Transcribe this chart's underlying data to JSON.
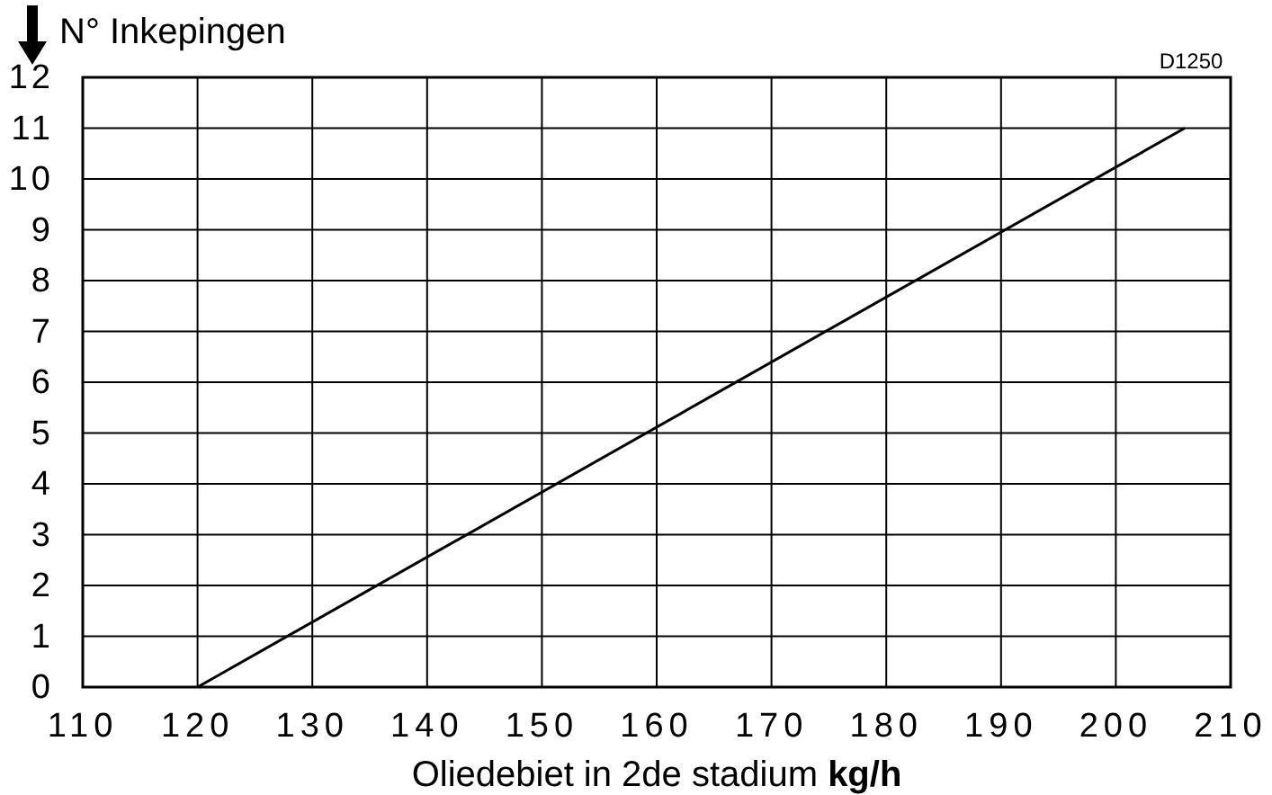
{
  "chart_data": {
    "type": "line",
    "ylabel": "N° Inkepingen",
    "xlabel": "Oliedebiet in 2de stadium kg/h",
    "annotations": [
      "D1250"
    ],
    "series": [
      {
        "color": "#000000",
        "x": [
          120,
          206
        ],
        "values": [
          0,
          11
        ]
      }
    ],
    "xlim": [
      110,
      210
    ],
    "xticks": [
      110,
      120,
      130,
      140,
      150,
      160,
      170,
      180,
      190,
      200,
      210
    ],
    "ylim": [
      0,
      12
    ],
    "yticks": [
      0,
      1,
      2,
      3,
      4,
      5,
      6,
      7,
      8,
      9,
      10,
      11,
      12
    ],
    "grid": true,
    "marker": "none",
    "line_style": "solid"
  }
}
